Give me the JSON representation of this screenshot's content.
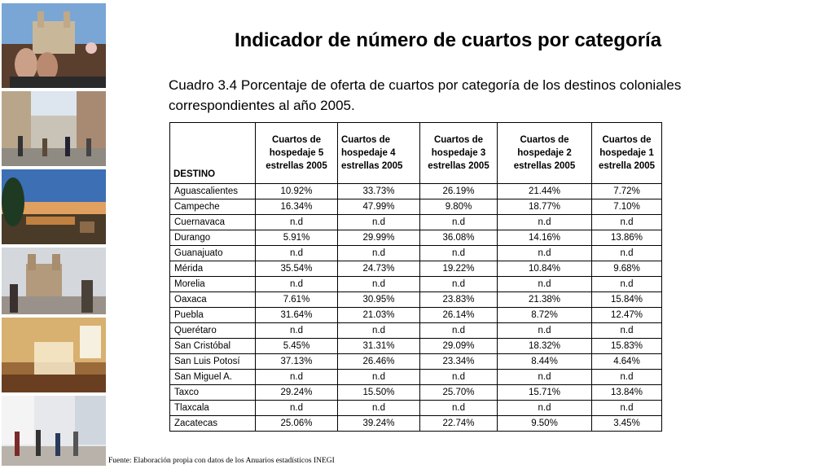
{
  "title": "Indicador de número de cuartos por categoría",
  "subtitle": "Cuadro 3.4 Porcentaje de oferta de cuartos por categoría de los destinos coloniales correspondientes al año 2005.",
  "table": {
    "headers": [
      "DESTINO",
      "Cuartos de hospedaje 5 estrellas 2005",
      "Cuartos de hospedaje 4 estrellas 2005",
      "Cuartos de hospedaje 3 estrellas 2005",
      "Cuartos de hospedaje 2 estrellas 2005",
      "Cuartos de hospedaje 1 estrella 2005"
    ],
    "rows": [
      [
        "Aguascalientes",
        "10.92%",
        "33.73%",
        "26.19%",
        "21.44%",
        "7.72%"
      ],
      [
        "Campeche",
        "16.34%",
        "47.99%",
        "9.80%",
        "18.77%",
        "7.10%"
      ],
      [
        "Cuernavaca",
        "n.d",
        "n.d",
        "n.d",
        "n.d",
        "n.d"
      ],
      [
        "Durango",
        "5.91%",
        "29.99%",
        "36.08%",
        "14.16%",
        "13.86%"
      ],
      [
        "Guanajuato",
        "n.d",
        "n.d",
        "n.d",
        "n.d",
        "n.d"
      ],
      [
        "Mérida",
        "35.54%",
        "24.73%",
        "19.22%",
        "10.84%",
        "9.68%"
      ],
      [
        "Morelia",
        "n.d",
        "n.d",
        "n.d",
        "n.d",
        "n.d"
      ],
      [
        "Oaxaca",
        "7.61%",
        "30.95%",
        "23.83%",
        "21.38%",
        "15.84%"
      ],
      [
        "Puebla",
        "31.64%",
        "21.03%",
        "26.14%",
        "8.72%",
        "12.47%"
      ],
      [
        "Querétaro",
        "n.d",
        "n.d",
        "n.d",
        "n.d",
        "n.d"
      ],
      [
        "San Cristóbal",
        "5.45%",
        "31.31%",
        "29.09%",
        "18.32%",
        "15.83%"
      ],
      [
        "San Luis Potosí",
        "37.13%",
        "26.46%",
        "23.34%",
        "8.44%",
        "4.64%"
      ],
      [
        "San Miguel A.",
        "n.d",
        "n.d",
        "n.d",
        "n.d",
        "n.d"
      ],
      [
        "Taxco",
        "29.24%",
        "15.50%",
        "25.70%",
        "15.71%",
        "13.84%"
      ],
      [
        "Tlaxcala",
        "n.d",
        "n.d",
        "n.d",
        "n.d",
        "n.d"
      ],
      [
        "Zacatecas",
        "25.06%",
        "39.24%",
        "22.74%",
        "9.50%",
        "3.45%"
      ]
    ]
  },
  "source": "Fuente: Elaboración propia con datos de los Anuarios estadísticos INEGI"
}
